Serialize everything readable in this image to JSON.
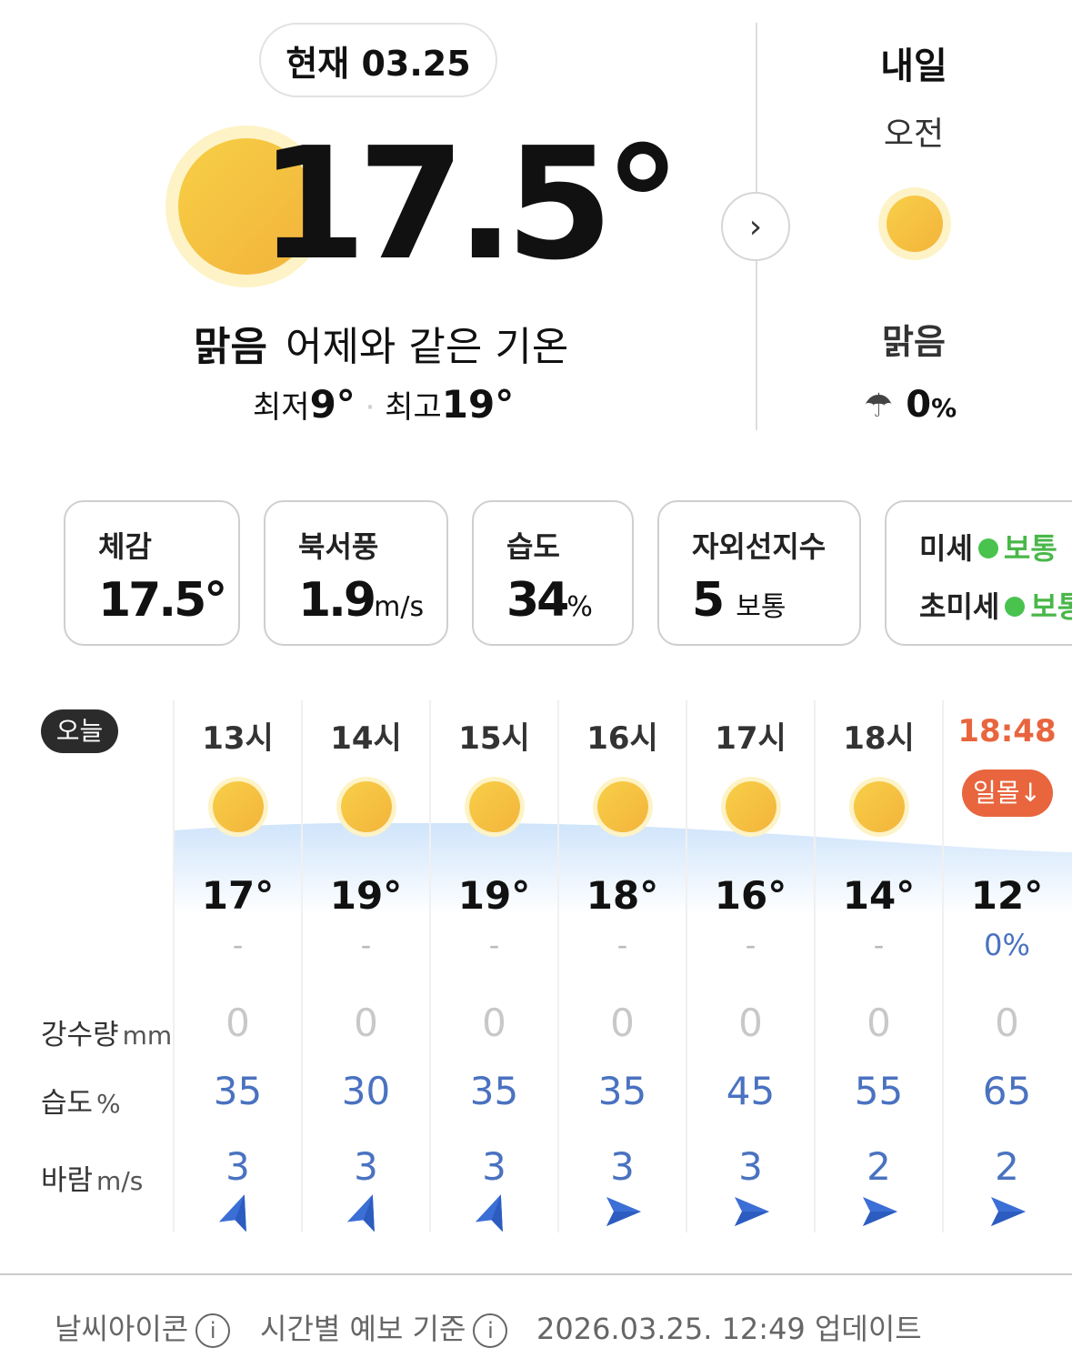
{
  "current": {
    "label": "현재 03.25",
    "temp": "17.5°",
    "condition": "맑음",
    "compare": "어제와 같은 기온",
    "min_label": "최저",
    "min": "9°",
    "max_label": "최고",
    "max": "19°",
    "icon": "sun-icon"
  },
  "tomorrow": {
    "title": "내일",
    "period": "오전",
    "condition": "맑음",
    "rain_prob": "0",
    "rain_unit": "%",
    "icon": "sun-icon"
  },
  "cards": [
    {
      "title": "체감",
      "value": "17.5°",
      "unit": ""
    },
    {
      "title": "북서풍",
      "value": "1.9",
      "unit": "m/s"
    },
    {
      "title": "습도",
      "value": "34",
      "unit": "%"
    },
    {
      "title": "자외선지수",
      "value": "5",
      "unit": "보통"
    },
    {
      "title1": "미세",
      "status1": "보통",
      "title2": "초미세",
      "status2": "보통",
      "status_color": "#49c24e"
    }
  ],
  "hourly": {
    "today_badge": "오늘",
    "labels": {
      "rain": "강수량",
      "rain_unit": "mm",
      "humidity": "습도",
      "humidity_unit": "%",
      "wind": "바람",
      "wind_unit": "m/s"
    },
    "columns": [
      {
        "hour": "13시",
        "temp": "17°",
        "prob": "-",
        "rain": "0",
        "humidity": "35",
        "wind": "3",
        "wind_dir": "north-northwest"
      },
      {
        "hour": "14시",
        "temp": "19°",
        "prob": "-",
        "rain": "0",
        "humidity": "30",
        "wind": "3",
        "wind_dir": "north-northwest"
      },
      {
        "hour": "15시",
        "temp": "19°",
        "prob": "-",
        "rain": "0",
        "humidity": "35",
        "wind": "3",
        "wind_dir": "north-northwest"
      },
      {
        "hour": "16시",
        "temp": "18°",
        "prob": "-",
        "rain": "0",
        "humidity": "35",
        "wind": "3",
        "wind_dir": "east"
      },
      {
        "hour": "17시",
        "temp": "16°",
        "prob": "-",
        "rain": "0",
        "humidity": "45",
        "wind": "3",
        "wind_dir": "east"
      },
      {
        "hour": "18시",
        "temp": "14°",
        "prob": "-",
        "rain": "0",
        "humidity": "55",
        "wind": "2",
        "wind_dir": "east"
      },
      {
        "hour": "18:48",
        "sunset": "일몰↓",
        "temp": "12°",
        "prob": "0%",
        "rain": "0",
        "humidity": "65",
        "wind": "2",
        "wind_dir": "east"
      }
    ]
  },
  "footer": {
    "icon_label": "날씨아이콘",
    "basis_label": "시간별 예보 기준",
    "updated": "2026.03.25. 12:49 업데이트"
  },
  "colors": {
    "sun": "#f5c040",
    "accent_blue": "#4a72c0",
    "sunset": "#e8653e",
    "green": "#49c24e"
  }
}
